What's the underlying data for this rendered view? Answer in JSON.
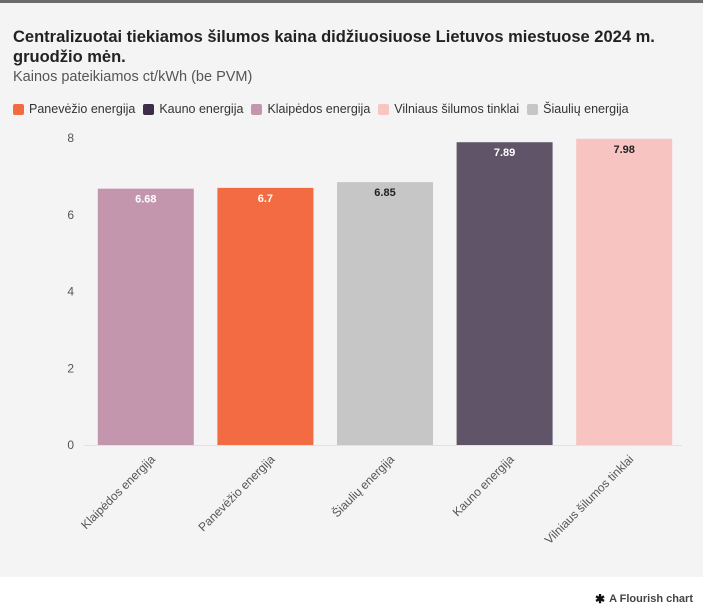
{
  "chart_data": {
    "type": "bar",
    "title": "Centralizuotai tiekiamos šilumos kaina didžiuosiuose Lietuvos miestuose 2024 m. gruodžio mėn.",
    "subtitle": "Kainos pateikiamos ct/kWh (be PVM)",
    "legend": [
      {
        "name": "Panevėžio energija",
        "color": "#f26b43"
      },
      {
        "name": "Kauno energija",
        "color": "#3d2c4a"
      },
      {
        "name": "Klaipėdos energija",
        "color": "#c496ad"
      },
      {
        "name": "Vilniaus šilumos tinklai",
        "color": "#f9c5c3"
      },
      {
        "name": "Šiaulių energija",
        "color": "#c6c6c6"
      }
    ],
    "categories": [
      "Klaipėdos energija",
      "Panevėžio energija",
      "Šiaulių energija",
      "Kauno energija",
      "Vilniaus šilumos tinklai"
    ],
    "values": [
      6.68,
      6.7,
      6.85,
      7.89,
      7.98
    ],
    "value_labels": [
      "6.68",
      "6.7",
      "6.85",
      "7.89",
      "7.98"
    ],
    "colors": [
      "#c496ad",
      "#f26b43",
      "#c6c6c6",
      "#605469",
      "#f7c4c2"
    ],
    "label_colors": [
      "#ffffff",
      "#ffffff",
      "#222222",
      "#ffffff",
      "#222222"
    ],
    "yticks": [
      "0",
      "2",
      "4",
      "6",
      "8"
    ],
    "ylim": [
      0,
      8
    ],
    "grid": false
  },
  "footer": {
    "credit": "A Flourish chart",
    "icon": "flourish-star-icon"
  }
}
